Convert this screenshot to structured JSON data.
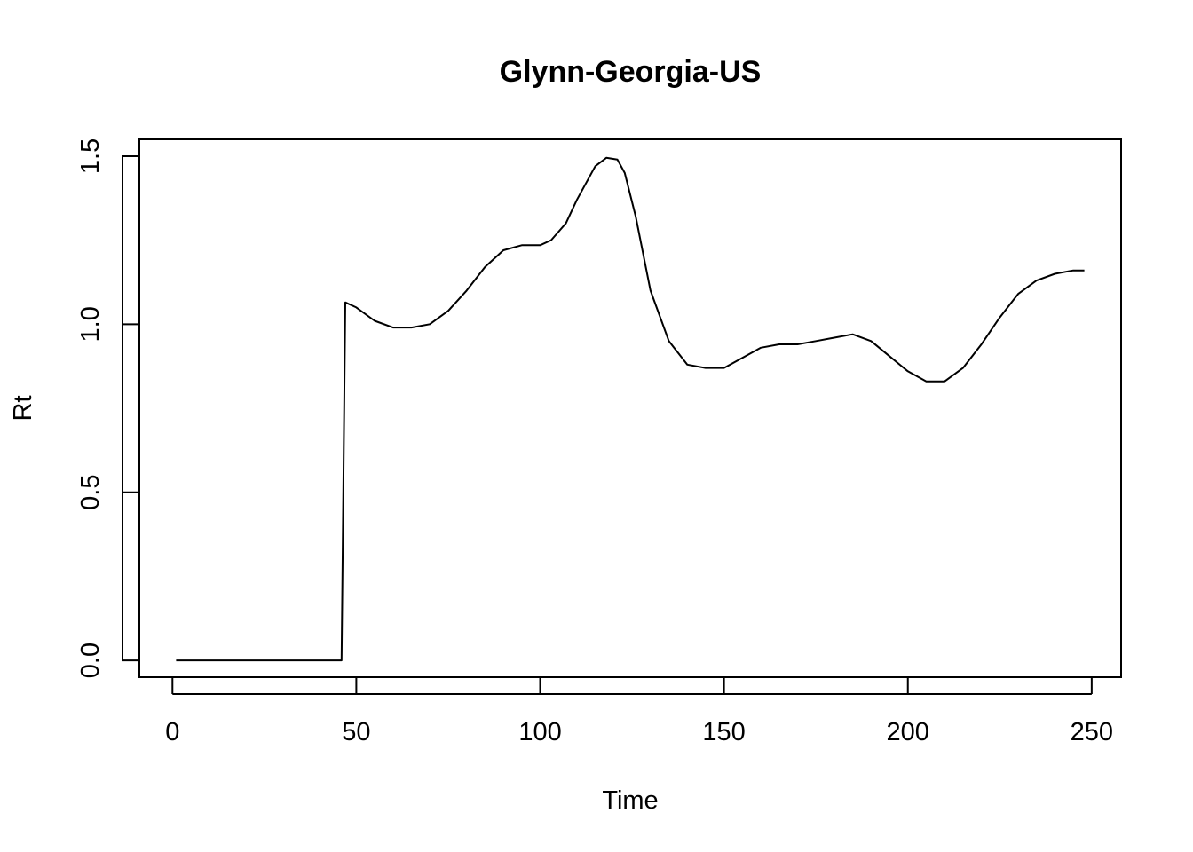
{
  "chart_data": {
    "type": "line",
    "title": "Glynn-Georgia-US",
    "xlabel": "Time",
    "ylabel": "Rt",
    "xlim": [
      -9,
      258
    ],
    "ylim": [
      -0.05,
      1.55
    ],
    "x_ticks": [
      0,
      50,
      100,
      150,
      200,
      250
    ],
    "x_tick_labels": [
      "0",
      "50",
      "100",
      "150",
      "200",
      "250"
    ],
    "y_ticks": [
      0.0,
      0.5,
      1.0,
      1.5
    ],
    "y_tick_labels": [
      "0.0",
      "0.5",
      "1.0",
      "1.5"
    ],
    "grid": false,
    "legend": "none",
    "line_color": "#000000",
    "series": [
      {
        "x": [
          1,
          46,
          47,
          50,
          55,
          60,
          65,
          70,
          75,
          80,
          85,
          90,
          95,
          100,
          103,
          107,
          110,
          115,
          118,
          121,
          123,
          126,
          130,
          135,
          140,
          145,
          150,
          155,
          160,
          165,
          170,
          175,
          180,
          185,
          190,
          195,
          200,
          205,
          210,
          215,
          220,
          225,
          230,
          235,
          240,
          245,
          248
        ],
        "y": [
          0.0,
          0.0,
          1.065,
          1.05,
          1.01,
          0.99,
          0.99,
          1.0,
          1.04,
          1.1,
          1.17,
          1.22,
          1.235,
          1.235,
          1.25,
          1.3,
          1.37,
          1.47,
          1.495,
          1.49,
          1.45,
          1.32,
          1.1,
          0.95,
          0.88,
          0.87,
          0.87,
          0.9,
          0.93,
          0.94,
          0.94,
          0.95,
          0.96,
          0.97,
          0.95,
          0.905,
          0.86,
          0.83,
          0.83,
          0.87,
          0.94,
          1.02,
          1.09,
          1.13,
          1.15,
          1.16,
          1.16
        ]
      }
    ]
  }
}
